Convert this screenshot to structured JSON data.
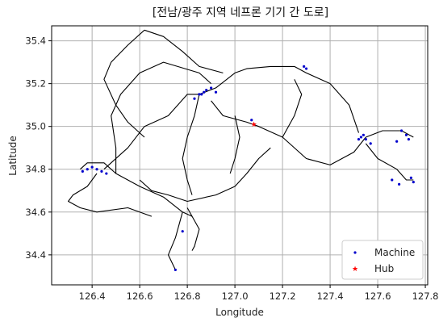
{
  "chart_data": {
    "type": "scatter",
    "title": "[전남/광주 지역 네프론 기기 간 도로]",
    "xlabel": "Longitude",
    "ylabel": "Latitude",
    "xlim": [
      126.23,
      127.81
    ],
    "ylim": [
      34.26,
      35.47
    ],
    "xticks": [
      "126.4",
      "126.6",
      "126.8",
      "127.0",
      "127.2",
      "127.4",
      "127.6",
      "127.8"
    ],
    "yticks": [
      "34.4",
      "34.6",
      "34.8",
      "35.0",
      "35.2",
      "35.4"
    ],
    "grid": true,
    "legend_position": "lower-right",
    "colors": {
      "machine": "#0000cc",
      "hub": "#ff0000",
      "road": "#000000",
      "grid": "#b0b0b0"
    },
    "series": [
      {
        "name": "Machine",
        "marker": "point",
        "x": [
          126.36,
          126.38,
          126.4,
          126.42,
          126.44,
          126.46,
          126.75,
          126.85,
          126.87,
          126.88,
          126.9,
          126.92,
          126.83,
          126.86,
          126.78,
          127.29,
          127.3,
          127.07,
          127.52,
          127.53,
          127.55,
          127.54,
          127.57,
          127.7,
          127.72,
          127.73,
          127.68,
          127.74,
          127.75,
          127.66,
          127.69
        ],
        "y": [
          34.79,
          34.8,
          34.81,
          34.8,
          34.79,
          34.78,
          34.33,
          35.15,
          35.16,
          35.17,
          35.18,
          35.16,
          35.13,
          35.15,
          34.51,
          35.28,
          35.27,
          35.03,
          34.94,
          34.95,
          34.94,
          34.96,
          34.92,
          34.98,
          34.96,
          34.94,
          34.93,
          34.76,
          34.74,
          34.75,
          34.73
        ]
      },
      {
        "name": "Hub",
        "marker": "star",
        "x": [
          127.08
        ],
        "y": [
          35.01
        ]
      }
    ],
    "roads": [
      [
        [
          126.35,
          34.8
        ],
        [
          126.38,
          34.83
        ],
        [
          126.45,
          34.83
        ],
        [
          126.5,
          34.78
        ],
        [
          126.6,
          34.72
        ],
        [
          126.7,
          34.67
        ],
        [
          126.78,
          34.6
        ],
        [
          126.82,
          34.58
        ]
      ],
      [
        [
          126.45,
          34.8
        ],
        [
          126.55,
          34.9
        ],
        [
          126.62,
          35.0
        ],
        [
          126.72,
          35.05
        ],
        [
          126.8,
          35.15
        ],
        [
          126.85,
          35.15
        ]
      ],
      [
        [
          126.5,
          34.78
        ],
        [
          126.5,
          34.9
        ],
        [
          126.48,
          35.05
        ],
        [
          126.52,
          35.15
        ],
        [
          126.6,
          35.25
        ],
        [
          126.7,
          35.3
        ],
        [
          126.85,
          35.25
        ],
        [
          126.9,
          35.2
        ]
      ],
      [
        [
          126.85,
          35.15
        ],
        [
          126.92,
          35.18
        ],
        [
          127.0,
          35.25
        ],
        [
          127.05,
          35.27
        ],
        [
          127.15,
          35.28
        ],
        [
          127.25,
          35.28
        ],
        [
          127.3,
          35.25
        ],
        [
          127.4,
          35.2
        ],
        [
          127.48,
          35.1
        ],
        [
          127.52,
          34.97
        ]
      ],
      [
        [
          126.9,
          35.12
        ],
        [
          126.95,
          35.05
        ],
        [
          127.05,
          35.02
        ],
        [
          127.1,
          35.0
        ],
        [
          127.2,
          34.95
        ],
        [
          127.3,
          34.85
        ],
        [
          127.4,
          34.82
        ],
        [
          127.5,
          34.88
        ],
        [
          127.55,
          34.95
        ]
      ],
      [
        [
          127.55,
          34.95
        ],
        [
          127.62,
          34.98
        ],
        [
          127.7,
          34.98
        ],
        [
          127.75,
          34.95
        ]
      ],
      [
        [
          127.55,
          34.92
        ],
        [
          127.6,
          34.85
        ],
        [
          127.68,
          34.8
        ],
        [
          127.72,
          34.75
        ],
        [
          127.75,
          34.75
        ]
      ],
      [
        [
          126.6,
          34.75
        ],
        [
          126.65,
          34.7
        ],
        [
          126.72,
          34.68
        ],
        [
          126.8,
          34.65
        ],
        [
          126.92,
          34.68
        ],
        [
          127.0,
          34.72
        ],
        [
          127.05,
          34.78
        ],
        [
          127.1,
          34.85
        ],
        [
          127.15,
          34.9
        ]
      ],
      [
        [
          126.78,
          34.6
        ],
        [
          126.75,
          34.48
        ],
        [
          126.72,
          34.4
        ],
        [
          126.75,
          34.33
        ]
      ],
      [
        [
          126.8,
          34.62
        ],
        [
          126.85,
          34.52
        ],
        [
          126.83,
          34.44
        ],
        [
          126.82,
          34.42
        ]
      ],
      [
        [
          126.62,
          35.45
        ],
        [
          126.55,
          35.38
        ],
        [
          126.48,
          35.3
        ],
        [
          126.45,
          35.22
        ],
        [
          126.5,
          35.1
        ],
        [
          126.55,
          35.02
        ],
        [
          126.62,
          34.95
        ]
      ],
      [
        [
          126.62,
          35.45
        ],
        [
          126.7,
          35.42
        ],
        [
          126.78,
          35.35
        ],
        [
          126.85,
          35.28
        ],
        [
          126.95,
          35.25
        ]
      ],
      [
        [
          127.0,
          35.05
        ],
        [
          127.02,
          34.95
        ],
        [
          127.0,
          34.85
        ],
        [
          126.98,
          34.78
        ]
      ],
      [
        [
          127.2,
          34.95
        ],
        [
          127.25,
          35.05
        ],
        [
          127.28,
          35.15
        ],
        [
          127.25,
          35.22
        ]
      ],
      [
        [
          126.85,
          35.15
        ],
        [
          126.83,
          35.05
        ],
        [
          126.8,
          34.95
        ],
        [
          126.78,
          34.85
        ],
        [
          126.8,
          34.75
        ],
        [
          126.82,
          34.68
        ]
      ],
      [
        [
          126.42,
          34.78
        ],
        [
          126.38,
          34.72
        ],
        [
          126.32,
          34.68
        ],
        [
          126.3,
          34.65
        ],
        [
          126.35,
          34.62
        ],
        [
          126.42,
          34.6
        ],
        [
          126.55,
          34.62
        ],
        [
          126.65,
          34.58
        ]
      ]
    ]
  }
}
